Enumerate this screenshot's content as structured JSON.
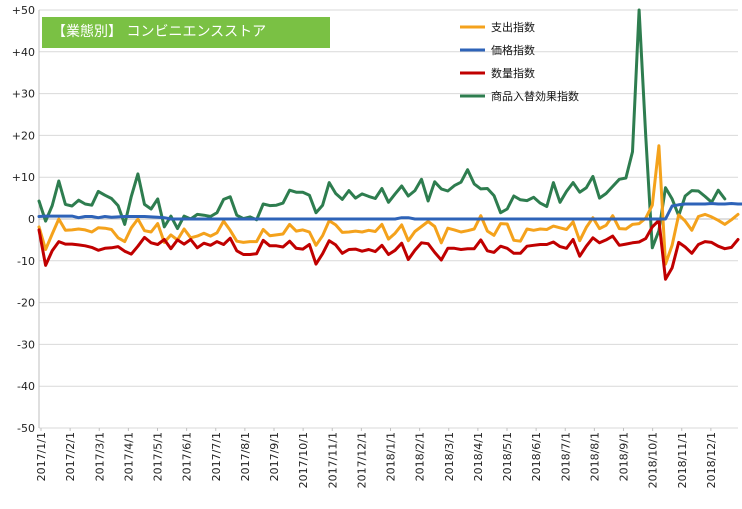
{
  "title": "【業態別】 コンビニエンスストア",
  "chart_data": {
    "type": "line",
    "title": "【業態別】 コンビニエンスストア",
    "xlabel": "",
    "ylabel": "",
    "ylim": [
      -50,
      50
    ],
    "yticks": [
      "+50",
      "+40",
      "+30",
      "+20",
      "+10",
      "0",
      "-10",
      "-20",
      "-30",
      "-40",
      "-50"
    ],
    "ytick_values": [
      50,
      40,
      30,
      20,
      10,
      0,
      -10,
      -20,
      -30,
      -40,
      -50
    ],
    "xticks": [
      "2017/1/1",
      "2017/2/1",
      "2017/3/1",
      "2017/4/1",
      "2017/5/1",
      "2017/6/1",
      "2017/7/1",
      "2017/8/1",
      "2017/9/1",
      "2017/10/1",
      "2017/11/1",
      "2017/12/1",
      "2018/1/1",
      "2018/2/1",
      "2018/3/1",
      "2018/4/1",
      "2018/5/1",
      "2018/6/1",
      "2018/7/1",
      "2018/8/1",
      "2018/9/1",
      "2018/10/1",
      "2018/11/1",
      "2018/12/1"
    ],
    "grid": true,
    "legend_position": "top-right",
    "series": [
      {
        "name": "支出指数",
        "color": "#f4a21c",
        "values": [
          -1.9,
          -7.3,
          -3.6,
          0.0,
          -2.7,
          -2.6,
          -2.4,
          -2.6,
          -3.1,
          -2.1,
          -2.2,
          -2.5,
          -4.5,
          -5.4,
          -2.1,
          0.0,
          -2.8,
          -3.1,
          -1.1,
          -5.6,
          -3.8,
          -5.0,
          -2.4,
          -4.5,
          -4.1,
          -3.4,
          -4.1,
          -3.3,
          -0.5,
          -2.7,
          -5.3,
          -5.6,
          -5.4,
          -5.4,
          -2.5,
          -4.0,
          -3.8,
          -3.6,
          -1.3,
          -2.9,
          -2.6,
          -3.1,
          -6.3,
          -4.0,
          -0.4,
          -1.4,
          -3.2,
          -3.1,
          -2.9,
          -3.1,
          -2.7,
          -3.0,
          -1.3,
          -4.8,
          -3.4,
          -1.4,
          -5.2,
          -3.0,
          -1.8,
          -0.6,
          -1.8,
          -5.7,
          -2.2,
          -2.6,
          -3.1,
          -2.8,
          -2.4,
          0.8,
          -2.9,
          -3.9,
          -1.1,
          -1.2,
          -5.1,
          -5.3,
          -2.4,
          -2.7,
          -2.4,
          -2.5,
          -1.7,
          -2.1,
          -2.5,
          -0.7,
          -5.2,
          -2.0,
          0.3,
          -2.3,
          -1.5,
          0.8,
          -2.3,
          -2.4,
          -1.3,
          -1.1,
          0.2,
          3.3,
          17.5,
          -10.8,
          -6.3,
          1.0,
          -0.5,
          -2.7,
          0.6,
          1.1,
          0.5,
          -0.3,
          -1.3,
          -0.2,
          1.1
        ]
      },
      {
        "name": "価格指数",
        "color": "#2e63b8",
        "values": [
          0.6,
          0.7,
          0.7,
          0.7,
          0.7,
          0.7,
          0.3,
          0.6,
          0.6,
          0.3,
          0.6,
          0.4,
          0.5,
          0.6,
          0.6,
          0.6,
          0.6,
          0.5,
          0.4,
          0.3,
          0.0,
          0.0,
          0.0,
          0.0,
          0.0,
          0.0,
          0.0,
          0.0,
          0.0,
          0.0,
          0.0,
          0.0,
          0.0,
          0.0,
          0.0,
          0.0,
          0.0,
          0.0,
          0.0,
          0.0,
          0.0,
          0.0,
          0.0,
          0.0,
          0.0,
          0.0,
          0.0,
          0.0,
          0.0,
          0.0,
          0.0,
          0.0,
          0.0,
          0.0,
          0.0,
          0.3,
          0.3,
          0.0,
          0.0,
          0.0,
          0.0,
          0.0,
          0.0,
          0.0,
          0.0,
          0.0,
          0.0,
          0.0,
          0.0,
          0.0,
          0.0,
          0.0,
          0.0,
          0.0,
          0.0,
          0.0,
          0.0,
          0.0,
          0.0,
          0.0,
          0.0,
          0.0,
          0.0,
          0.0,
          0.0,
          0.0,
          0.0,
          0.0,
          0.0,
          0.0,
          0.0,
          0.0,
          0.0,
          0.0,
          0.0,
          0.0,
          3.1,
          3.4,
          3.6,
          3.6,
          3.6,
          3.6,
          3.7,
          3.6,
          3.6,
          3.7,
          3.6,
          3.6
        ]
      },
      {
        "name": "数量指数",
        "color": "#c00000",
        "values": [
          -2.6,
          -11.1,
          -7.6,
          -5.4,
          -6.0,
          -6.0,
          -6.2,
          -6.4,
          -6.8,
          -7.5,
          -7.0,
          -6.9,
          -6.6,
          -7.7,
          -8.4,
          -6.5,
          -4.4,
          -5.7,
          -6.1,
          -4.9,
          -7.1,
          -5.0,
          -6.0,
          -4.9,
          -6.9,
          -5.8,
          -6.3,
          -5.4,
          -6.1,
          -4.6,
          -7.6,
          -8.5,
          -8.5,
          -8.3,
          -5.1,
          -6.4,
          -6.4,
          -6.7,
          -5.3,
          -7.0,
          -7.2,
          -6.1,
          -10.8,
          -8.3,
          -5.2,
          -6.2,
          -8.2,
          -7.3,
          -7.2,
          -7.7,
          -7.3,
          -7.8,
          -6.3,
          -8.5,
          -7.5,
          -5.8,
          -9.7,
          -7.5,
          -5.7,
          -5.9,
          -8.0,
          -9.8,
          -7.0,
          -7.0,
          -7.3,
          -7.1,
          -7.1,
          -5.0,
          -7.6,
          -8.0,
          -6.5,
          -7.0,
          -8.2,
          -8.2,
          -6.5,
          -6.3,
          -6.1,
          -6.1,
          -5.5,
          -6.6,
          -7.0,
          -4.9,
          -8.9,
          -6.5,
          -4.5,
          -5.7,
          -5.0,
          -4.1,
          -6.3,
          -6.0,
          -5.7,
          -5.5,
          -4.7,
          -1.9,
          -0.3,
          -14.4,
          -11.7,
          -5.6,
          -6.7,
          -8.2,
          -6.1,
          -5.4,
          -5.6,
          -6.5,
          -7.1,
          -6.8,
          -4.9
        ]
      },
      {
        "name": "商品入替効果指数",
        "color": "#2e7d4f",
        "values": [
          4.3,
          -0.5,
          3.2,
          9.1,
          3.5,
          3.1,
          4.5,
          3.6,
          3.3,
          6.6,
          5.7,
          4.9,
          3.2,
          -1.3,
          5.4,
          10.8,
          3.5,
          2.4,
          4.8,
          -1.9,
          0.7,
          -2.3,
          0.7,
          0.0,
          1.1,
          0.9,
          0.6,
          1.5,
          4.7,
          5.3,
          0.9,
          0.1,
          0.5,
          -0.2,
          3.6,
          3.2,
          3.3,
          3.8,
          6.9,
          6.4,
          6.4,
          5.7,
          1.5,
          3.3,
          8.7,
          6.1,
          4.7,
          6.8,
          5.0,
          6.0,
          5.4,
          4.9,
          7.3,
          4.0,
          6.0,
          7.9,
          5.5,
          6.8,
          9.5,
          4.3,
          8.9,
          7.2,
          6.7,
          8.0,
          8.8,
          11.8,
          8.4,
          7.2,
          7.3,
          5.6,
          1.5,
          2.4,
          5.5,
          4.6,
          4.4,
          5.2,
          3.8,
          3.0,
          8.7,
          4.0,
          6.6,
          8.7,
          6.4,
          7.5,
          10.2,
          5.0,
          6.1,
          7.8,
          9.5,
          9.8,
          16.1,
          52.6,
          20.0,
          -6.9,
          -2.8,
          7.5,
          4.8,
          0.8,
          5.5,
          6.8,
          6.7,
          5.4,
          4.0,
          6.9,
          4.8
        ]
      }
    ]
  }
}
